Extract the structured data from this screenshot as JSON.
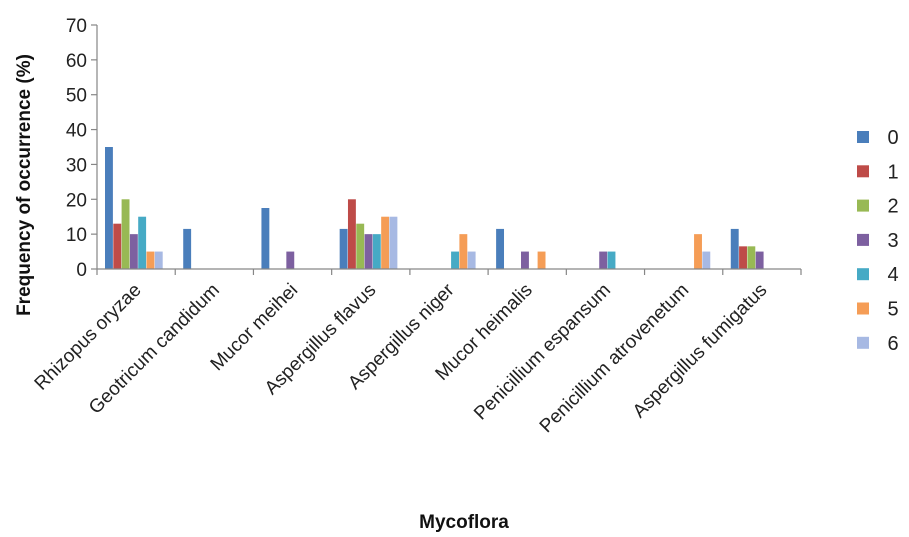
{
  "chart_data": {
    "type": "bar",
    "xlabel": "Mycoflora",
    "ylabel": "Frequency of occurrence (%)",
    "ylim": [
      0,
      70
    ],
    "yticks": [
      0,
      10,
      20,
      30,
      40,
      50,
      60,
      70
    ],
    "grid": false,
    "legend_position": "right",
    "categories": [
      "Rhizopus oryzae",
      "Geotricum candidum",
      "Mucor  meihei",
      "Aspergillus flavus",
      "Aspergillus niger",
      "Mucor heimalis",
      "Penicillium espansum",
      "Penicillium atrovenetum",
      "Aspergillus fumigatus"
    ],
    "series": [
      {
        "name": "0",
        "color": "#4a7ebb",
        "values": [
          35,
          11.5,
          17.5,
          11.5,
          0,
          11.5,
          0,
          0,
          11.5
        ]
      },
      {
        "name": "1",
        "color": "#be4b48",
        "values": [
          13,
          0,
          0,
          20,
          0,
          0,
          0,
          0,
          6.5
        ]
      },
      {
        "name": "2",
        "color": "#98b954",
        "values": [
          20,
          0,
          0,
          13,
          0,
          0,
          0,
          0,
          6.5
        ]
      },
      {
        "name": "3",
        "color": "#7d60a0",
        "values": [
          10,
          0,
          5,
          10,
          0,
          5,
          5,
          0,
          5
        ]
      },
      {
        "name": "4",
        "color": "#46aac5",
        "values": [
          15,
          0,
          0,
          10,
          5,
          0,
          5,
          0,
          0
        ]
      },
      {
        "name": "5",
        "color": "#f59d56",
        "values": [
          5,
          0,
          0,
          15,
          10,
          5,
          0,
          10,
          0
        ]
      },
      {
        "name": "6",
        "color": "#a7b9e3",
        "values": [
          5,
          0,
          0,
          15,
          5,
          0,
          0,
          5,
          0
        ]
      }
    ]
  }
}
